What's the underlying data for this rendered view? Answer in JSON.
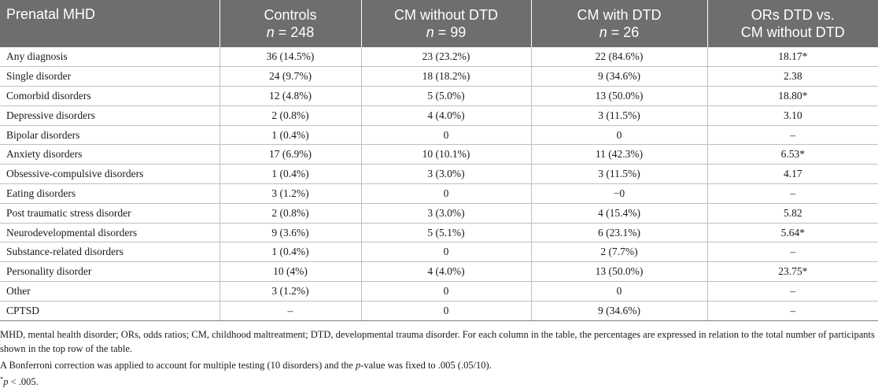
{
  "header": {
    "col0": "Prenatal MHD",
    "col1_line1": "Controls",
    "col1_n": "n",
    "col1_eq": " = 248",
    "col2_line1": "CM without DTD",
    "col2_n": "n",
    "col2_eq": " = 99",
    "col3_line1": "CM with DTD",
    "col3_n": "n",
    "col3_eq": " = 26",
    "col4_line1": "ORs DTD vs.",
    "col4_line2": "CM without DTD"
  },
  "rows": [
    [
      "Any diagnosis",
      "36 (14.5%)",
      "23 (23.2%)",
      "22 (84.6%)",
      "18.17*"
    ],
    [
      "Single disorder",
      "24 (9.7%)",
      "18 (18.2%)",
      "9 (34.6%)",
      "2.38"
    ],
    [
      "Comorbid disorders",
      "12 (4.8%)",
      "5 (5.0%)",
      "13 (50.0%)",
      "18.80*"
    ],
    [
      "Depressive disorders",
      "2 (0.8%)",
      "4 (4.0%)",
      "3 (11.5%)",
      "3.10"
    ],
    [
      "Bipolar disorders",
      "1 (0.4%)",
      "0",
      "0",
      "–"
    ],
    [
      "Anxiety disorders",
      "17 (6.9%)",
      "10 (10.1%)",
      "11 (42.3%)",
      "6.53*"
    ],
    [
      "Obsessive-compulsive disorders",
      "1 (0.4%)",
      "3 (3.0%)",
      "3 (11.5%)",
      "4.17"
    ],
    [
      "Eating disorders",
      "3 (1.2%)",
      "0",
      "−0",
      "–"
    ],
    [
      "Post traumatic stress disorder",
      "2 (0.8%)",
      "3 (3.0%)",
      "4 (15.4%)",
      "5.82"
    ],
    [
      "Neurodevelopmental disorders",
      "9 (3.6%)",
      "5 (5.1%)",
      "6 (23.1%)",
      "5.64*"
    ],
    [
      "Substance-related disorders",
      "1 (0.4%)",
      "0",
      "2 (7.7%)",
      "–"
    ],
    [
      "Personality disorder",
      "10 (4%)",
      "4 (4.0%)",
      "13 (50.0%)",
      "23.75*"
    ],
    [
      "Other",
      "3 (1.2%)",
      "0",
      "0",
      "–"
    ],
    [
      "CPTSD",
      "–",
      "0",
      "9 (34.6%)",
      "–"
    ]
  ],
  "notes": {
    "abbrev": "MHD, mental health disorder; ORs, odds ratios; CM, childhood maltreatment; DTD, developmental trauma disorder. For each column in the table, the percentages are expressed in relation to the total number of participants shown in the top row of the table.",
    "bonferroni_a": "A Bonferroni correction was applied to account for multiple testing (10 disorders) and the ",
    "bonferroni_p": "p",
    "bonferroni_b": "-value was fixed to .005 (.05/10).",
    "sig_star": "*",
    "sig_p": "p",
    "sig_rest": " < .005."
  }
}
